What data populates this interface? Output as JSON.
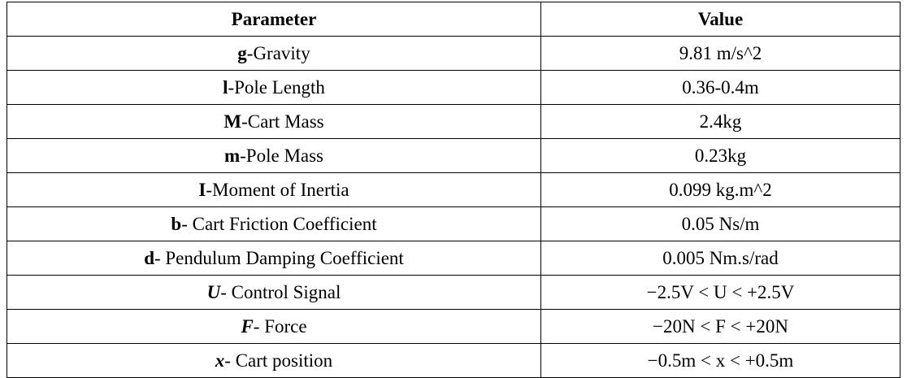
{
  "table": {
    "headers": {
      "parameter": "Parameter",
      "value": "Value"
    },
    "rows": [
      {
        "symbol": "g",
        "desc": "-Gravity",
        "value": "9.81 m/s^2"
      },
      {
        "symbol": "l",
        "desc": "-Pole Length",
        "value": "0.36-0.4m"
      },
      {
        "symbol": "M",
        "desc": "-Cart Mass",
        "value": "2.4kg"
      },
      {
        "symbol": "m",
        "desc": "-Pole Mass",
        "value": "0.23kg"
      },
      {
        "symbol": "I",
        "desc": "-Moment of Inertia",
        "value": "0.099 kg.m^2"
      },
      {
        "symbol": "b",
        "desc": "- Cart Friction Coefficient",
        "value": "0.05 Ns/m"
      },
      {
        "symbol": "d",
        "desc": "- Pendulum Damping Coefficient",
        "value": "0.005 Nm.s/rad"
      },
      {
        "symbol": "U",
        "desc": "- Control Signal",
        "value": "−2.5V < U < +2.5V"
      },
      {
        "symbol": "F",
        "desc": "- Force",
        "value": "−20N < F < +20N"
      },
      {
        "symbol": "x",
        "desc": "- Cart position",
        "value": "−0.5m < x < +0.5m"
      }
    ]
  }
}
